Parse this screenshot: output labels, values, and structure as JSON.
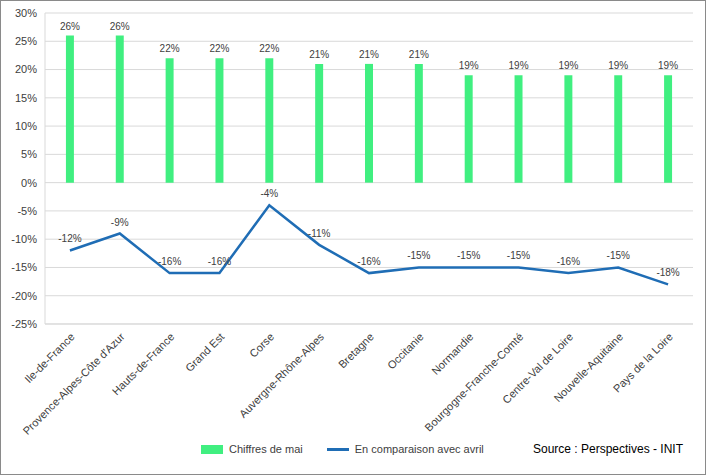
{
  "chart_data": {
    "type": "bar",
    "categories": [
      "Ile-de-France",
      "Provence-Alpes-Côte d'Azur",
      "Hauts-de-France",
      "Grand Est",
      "Corse",
      "Auvergne-Rhône-Alpes",
      "Bretagne",
      "Occitanie",
      "Normandie",
      "Bourgogne-Franche-Comté",
      "Centre-Val de Loire",
      "Nouvelle-Aquitaine",
      "Pays de la Loire"
    ],
    "series": [
      {
        "name": "Chiffres de mai",
        "type": "bar",
        "color": "#40ef80",
        "values": [
          26,
          26,
          22,
          22,
          22,
          21,
          21,
          21,
          19,
          19,
          19,
          19,
          19
        ],
        "value_labels": [
          "26%",
          "26%",
          "22%",
          "22%",
          "22%",
          "21%",
          "21%",
          "21%",
          "19%",
          "19%",
          "19%",
          "19%",
          "19%"
        ]
      },
      {
        "name": "En comparaison avec avril",
        "type": "line",
        "color": "#1f6db5",
        "values": [
          -12,
          -9,
          -16,
          -16,
          -4,
          -11,
          -16,
          -15,
          -15,
          -15,
          -16,
          -15,
          -18
        ],
        "value_labels": [
          "-12%",
          "-9%",
          "-16%",
          "-16%",
          "-4%",
          "-11%",
          "-16%",
          "-15%",
          "-15%",
          "-15%",
          "-16%",
          "-15%",
          "-18%"
        ]
      }
    ],
    "ylim": [
      -25,
      30
    ],
    "yticks": [
      {
        "value": -25,
        "label": "-25%"
      },
      {
        "value": -20,
        "label": "-20%"
      },
      {
        "value": -15,
        "label": "-15%"
      },
      {
        "value": -10,
        "label": "-10%"
      },
      {
        "value": -5,
        "label": "-5%"
      },
      {
        "value": 0,
        "label": "0%"
      },
      {
        "value": 5,
        "label": "5%"
      },
      {
        "value": 10,
        "label": "10%"
      },
      {
        "value": 15,
        "label": "15%"
      },
      {
        "value": 20,
        "label": "20%"
      },
      {
        "value": 25,
        "label": "25%"
      },
      {
        "value": 30,
        "label": "30%"
      }
    ],
    "grid": true,
    "legend": "bottom",
    "data_labels": true,
    "annotation": "Source : Perspectives - INIT"
  }
}
